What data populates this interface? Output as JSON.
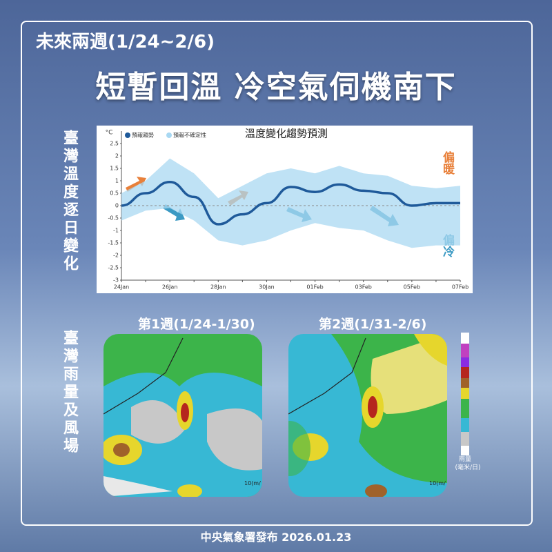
{
  "header": {
    "subtitle": "未來兩週(1/24~2/6)",
    "title": "短暫回溫 冷空氣伺機南下"
  },
  "side_labels": [
    "臺灣溫度逐日變化",
    "臺灣雨量及風場"
  ],
  "chart_data": {
    "type": "line",
    "title": "溫度變化趨勢預測",
    "y_unit": "°C",
    "categories": [
      "24Jan",
      null,
      "26Jan",
      null,
      "28Jan",
      null,
      "30Jan",
      null,
      "01Feb",
      null,
      "03Feb",
      null,
      "05Feb",
      null,
      "07Feb"
    ],
    "series": [
      {
        "name": "預報趨勢",
        "color": "#1f5a9a",
        "values": [
          0.0,
          0.5,
          0.95,
          0.35,
          -0.75,
          -0.35,
          0.1,
          0.75,
          0.55,
          0.85,
          0.6,
          0.5,
          0.0,
          0.1,
          0.1
        ]
      },
      {
        "name": "預報不確定性",
        "color": "#a9d8f2",
        "upper": [
          0.5,
          1.0,
          1.9,
          1.3,
          0.3,
          0.8,
          1.3,
          1.5,
          1.3,
          1.6,
          1.3,
          1.2,
          0.8,
          0.7,
          0.8
        ],
        "lower": [
          -0.6,
          -0.2,
          -0.1,
          -0.6,
          -1.4,
          -1.6,
          -1.4,
          -1.0,
          -0.7,
          -0.9,
          -1.0,
          -1.4,
          -1.7,
          -1.6,
          -1.6
        ]
      }
    ],
    "ylim": [
      -3,
      3
    ],
    "yticks": [
      -3.0,
      -2.5,
      -2.0,
      -1.5,
      -1.0,
      -0.5,
      0.0,
      0.5,
      1.0,
      1.5,
      2.0,
      2.5
    ],
    "annotations": {
      "warm": "偏暖",
      "cold": "偏冷"
    }
  },
  "maps": [
    {
      "title": "第1週(1/24-1/30)",
      "scale": "10(m/"
    },
    {
      "title": "第2週(1/31-2/6)",
      "scale": "10(m/"
    }
  ],
  "rain_legend": "雨量\n(毫米/日)",
  "footer": "中央氣象署發布 2026.01.23"
}
